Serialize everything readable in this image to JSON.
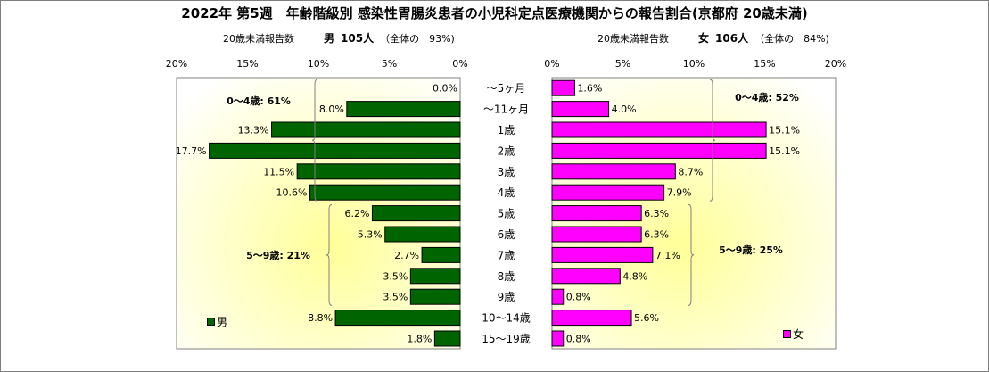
{
  "title": "2022年 第5週　年齢階級別 感染性胃腸炎患者の小児科定点医療機関からの報告割合(京都府 20歳未満)",
  "male_header": {
    "label": "20歳未満報告数",
    "sex": "男",
    "count": "105人",
    "share": "（全体の　93%)"
  },
  "female_header": {
    "label": "20歳未満報告数",
    "sex": "女",
    "count": "106人",
    "share": "（全体の　84%)"
  },
  "legend": {
    "male": "男",
    "female": "女"
  },
  "colors": {
    "male": "#006400",
    "female": "#ff00ff",
    "panel_fill": "#ffffcc",
    "panel_glow": "#ffff99"
  },
  "chart_data": {
    "type": "bar",
    "orientation": "horizontal",
    "layout": "population-pyramid",
    "categories": [
      "～5ヶ月",
      "～11ヶ月",
      "1歳",
      "2歳",
      "3歳",
      "4歳",
      "5歳",
      "6歳",
      "7歳",
      "8歳",
      "9歳",
      "10～14歳",
      "15～19歳"
    ],
    "series": [
      {
        "name": "男",
        "values": [
          0.0,
          8.0,
          13.3,
          17.7,
          11.5,
          10.6,
          6.2,
          5.3,
          2.7,
          3.5,
          3.5,
          8.8,
          1.8
        ],
        "labels": [
          "0.0%",
          "8.0%",
          "13.3%",
          "17.7%",
          "11.5%",
          "10.6%",
          "6.2%",
          "5.3%",
          "2.7%",
          "3.5%",
          "3.5%",
          "8.8%",
          "1.8%"
        ]
      },
      {
        "name": "女",
        "values": [
          1.6,
          4.0,
          15.1,
          15.1,
          8.7,
          7.9,
          6.3,
          6.3,
          7.1,
          4.8,
          0.8,
          5.6,
          0.8
        ],
        "labels": [
          "1.6%",
          "4.0%",
          "15.1%",
          "15.1%",
          "8.7%",
          "7.9%",
          "6.3%",
          "6.3%",
          "7.1%",
          "4.8%",
          "0.8%",
          "5.6%",
          "0.8%"
        ]
      }
    ],
    "xlim": [
      0,
      20
    ],
    "xticks": [
      "0%",
      "5%",
      "10%",
      "15%",
      "20%"
    ],
    "tick_values": [
      0,
      5,
      10,
      15,
      20
    ],
    "annotations": {
      "male": [
        {
          "text": "0～4歳: 61%",
          "from": 0,
          "to": 5
        },
        {
          "text": "5～9歳: 21%",
          "from": 6,
          "to": 10
        }
      ],
      "female": [
        {
          "text": "0～4歳: 52%",
          "from": 0,
          "to": 5
        },
        {
          "text": "5～9歳: 25%",
          "from": 6,
          "to": 10
        }
      ]
    }
  }
}
